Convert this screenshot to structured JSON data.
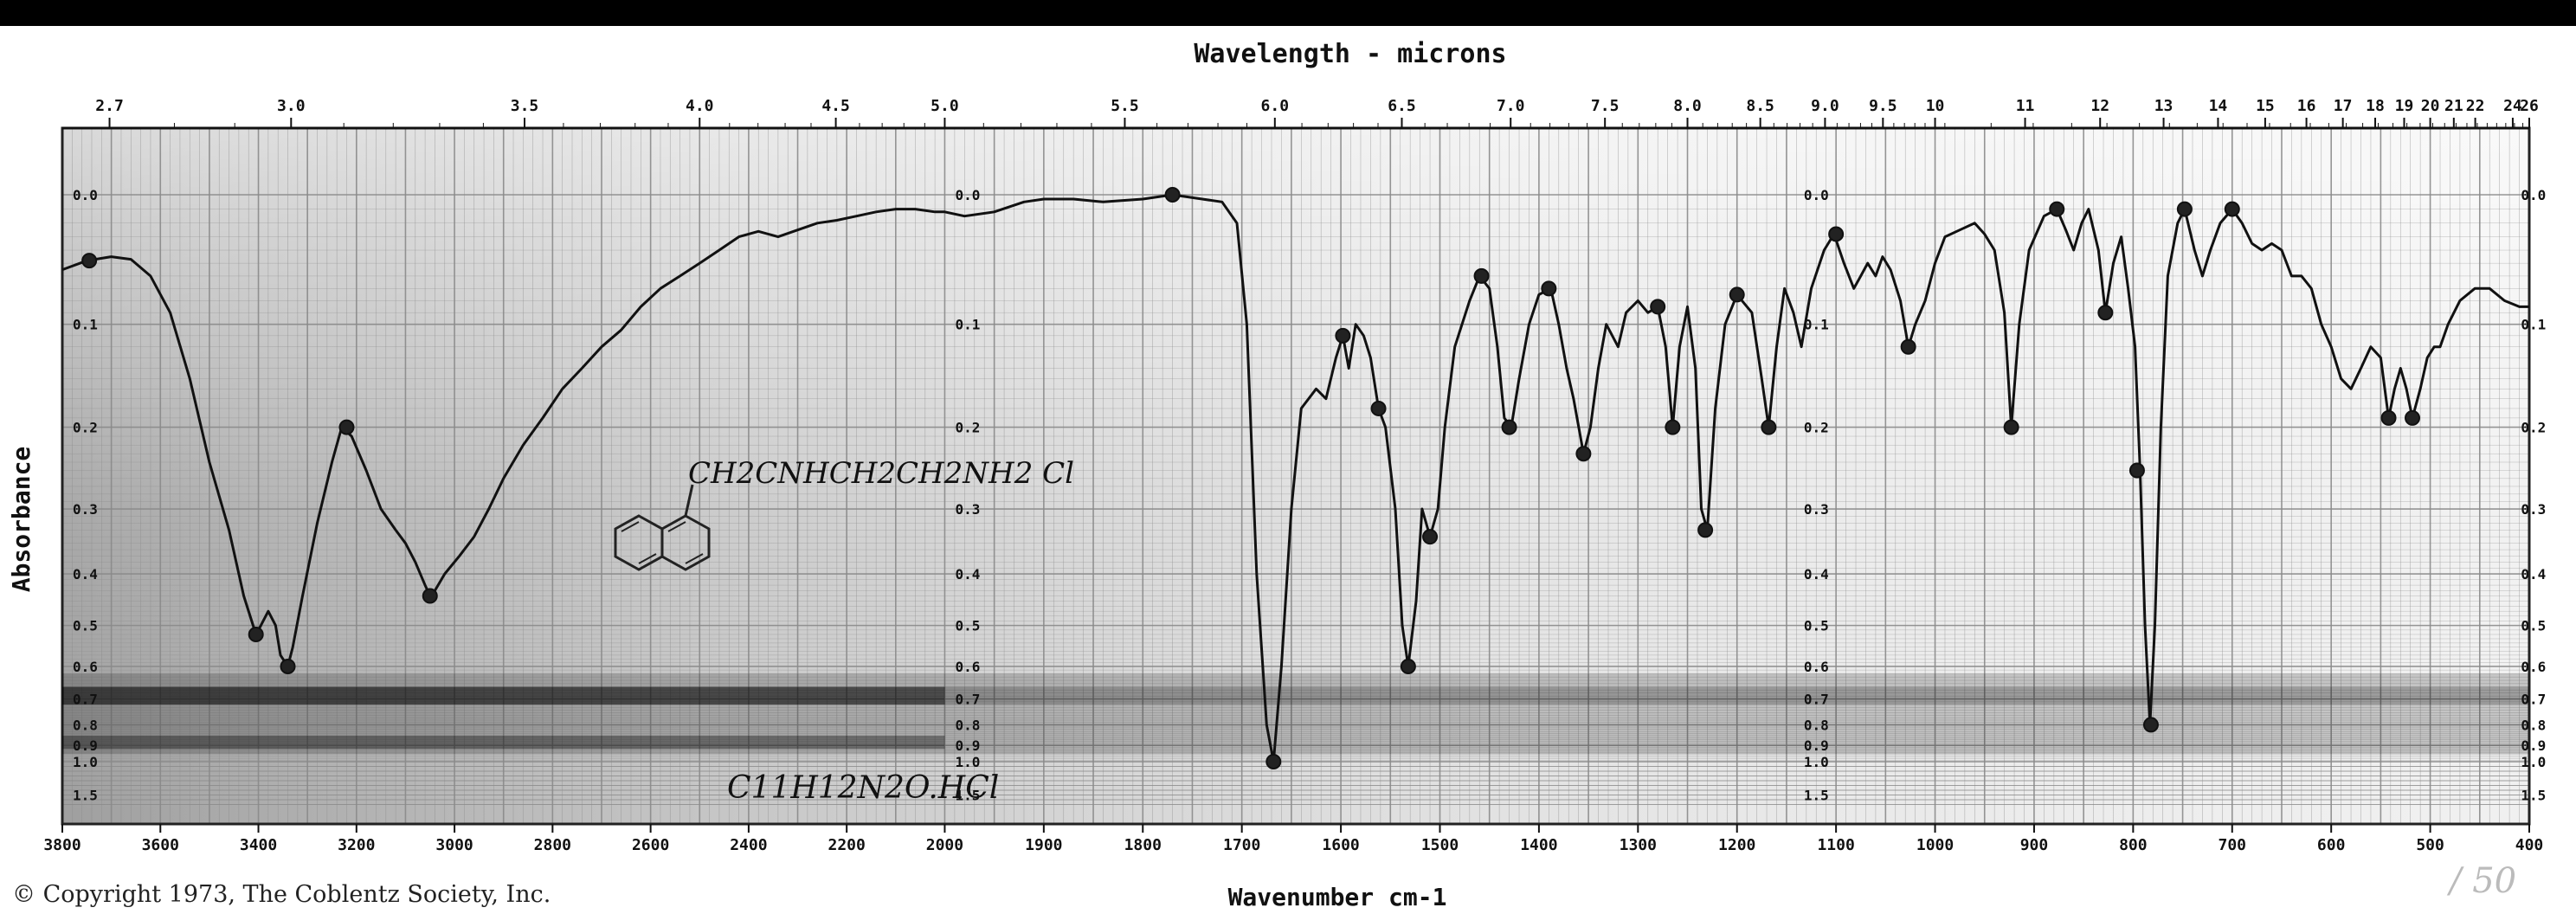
{
  "chart_data": {
    "type": "line",
    "title": "",
    "top_axis_label": "Wavelength - microns",
    "xlabel": "Wavenumber cm-1",
    "ylabel": "Absorbance",
    "copyright": "© Copyright 1973, The Coblentz Society, Inc.",
    "formula": "C11H12N2O.HCl",
    "structure_label": "CH2CNHCH2CH2NH2 Cl",
    "handwritten_note": "/ 50",
    "x_axis_segments": [
      {
        "from": 3800,
        "to": 2000,
        "left": 0.0,
        "right": 0.3577
      },
      {
        "from": 2000,
        "to": 400,
        "left": 0.3577,
        "right": 1.0
      }
    ],
    "bottom_ticks": [
      3800,
      3600,
      3400,
      3200,
      3000,
      2800,
      2600,
      2400,
      2200,
      2000,
      1900,
      1800,
      1700,
      1600,
      1500,
      1400,
      1300,
      1200,
      1100,
      1000,
      900,
      800,
      700,
      600,
      500,
      400
    ],
    "top_ticks": [
      {
        "label": "2.7",
        "um": 2.7
      },
      {
        "label": "3.0",
        "um": 3.0
      },
      {
        "label": "3.5",
        "um": 3.5
      },
      {
        "label": "4.0",
        "um": 4.0
      },
      {
        "label": "4.5",
        "um": 4.5
      },
      {
        "label": "5.0",
        "um": 5.0
      },
      {
        "label": "5.5",
        "um": 5.5
      },
      {
        "label": "6.0",
        "um": 6.0
      },
      {
        "label": "6.5",
        "um": 6.5
      },
      {
        "label": "7.0",
        "um": 7.0
      },
      {
        "label": "7.5",
        "um": 7.5
      },
      {
        "label": "8.0",
        "um": 8.0
      },
      {
        "label": "8.5",
        "um": 8.5
      },
      {
        "label": "9.0",
        "um": 9.0
      },
      {
        "label": "9.5",
        "um": 9.5
      },
      {
        "label": "10",
        "um": 10
      },
      {
        "label": "11",
        "um": 11
      },
      {
        "label": "12",
        "um": 12
      },
      {
        "label": "13",
        "um": 13
      },
      {
        "label": "14",
        "um": 14
      },
      {
        "label": "15",
        "um": 15
      },
      {
        "label": "16",
        "um": 16
      },
      {
        "label": "17",
        "um": 17
      },
      {
        "label": "18",
        "um": 18
      },
      {
        "label": "19",
        "um": 19
      },
      {
        "label": "20",
        "um": 20
      },
      {
        "label": "21",
        "um": 21
      },
      {
        "label": "22",
        "um": 22
      },
      {
        "label": "24",
        "um": 24
      },
      {
        "label": "26",
        "um": 26
      }
    ],
    "absorbance_ticks": [
      {
        "label": "0.0",
        "value": 0.0
      },
      {
        "label": "0.1",
        "value": 0.1
      },
      {
        "label": "0.2",
        "value": 0.2
      },
      {
        "label": "0.3",
        "value": 0.3
      },
      {
        "label": "0.4",
        "value": 0.4
      },
      {
        "label": "0.5",
        "value": 0.5
      },
      {
        "label": "0.6",
        "value": 0.6
      },
      {
        "label": "0.7",
        "value": 0.7
      },
      {
        "label": "0.8",
        "value": 0.8
      },
      {
        "label": "0.9",
        "value": 0.9
      },
      {
        "label": "1.0",
        "value": 1.0
      },
      {
        "label": "1.5",
        "value": 1.5
      }
    ],
    "absorbance_scale_columns": [
      0.0,
      0.3577,
      0.7017,
      0.9924
    ],
    "series": [
      {
        "points": [
          [
            3800,
            0.055
          ],
          [
            3750,
            0.048
          ],
          [
            3700,
            0.045
          ],
          [
            3660,
            0.047
          ],
          [
            3620,
            0.06
          ],
          [
            3580,
            0.09
          ],
          [
            3540,
            0.15
          ],
          [
            3500,
            0.24
          ],
          [
            3460,
            0.33
          ],
          [
            3430,
            0.44
          ],
          [
            3405,
            0.52
          ],
          [
            3395,
            0.5
          ],
          [
            3380,
            0.47
          ],
          [
            3365,
            0.5
          ],
          [
            3355,
            0.57
          ],
          [
            3340,
            0.6
          ],
          [
            3330,
            0.55
          ],
          [
            3310,
            0.44
          ],
          [
            3280,
            0.32
          ],
          [
            3250,
            0.24
          ],
          [
            3230,
            0.2
          ],
          [
            3210,
            0.21
          ],
          [
            3180,
            0.25
          ],
          [
            3150,
            0.3
          ],
          [
            3120,
            0.33
          ],
          [
            3100,
            0.35
          ],
          [
            3080,
            0.38
          ],
          [
            3060,
            0.42
          ],
          [
            3050,
            0.44
          ],
          [
            3040,
            0.43
          ],
          [
            3020,
            0.4
          ],
          [
            2990,
            0.37
          ],
          [
            2960,
            0.34
          ],
          [
            2930,
            0.3
          ],
          [
            2900,
            0.26
          ],
          [
            2860,
            0.22
          ],
          [
            2820,
            0.19
          ],
          [
            2780,
            0.16
          ],
          [
            2740,
            0.14
          ],
          [
            2700,
            0.12
          ],
          [
            2660,
            0.105
          ],
          [
            2620,
            0.085
          ],
          [
            2580,
            0.07
          ],
          [
            2540,
            0.06
          ],
          [
            2500,
            0.05
          ],
          [
            2460,
            0.04
          ],
          [
            2420,
            0.03
          ],
          [
            2380,
            0.026
          ],
          [
            2340,
            0.03
          ],
          [
            2300,
            0.025
          ],
          [
            2260,
            0.02
          ],
          [
            2220,
            0.018
          ],
          [
            2180,
            0.015
          ],
          [
            2140,
            0.012
          ],
          [
            2100,
            0.01
          ],
          [
            2060,
            0.01
          ],
          [
            2020,
            0.012
          ],
          [
            2000,
            0.012
          ],
          [
            1980,
            0.015
          ],
          [
            1950,
            0.012
          ],
          [
            1920,
            0.005
          ],
          [
            1900,
            0.003
          ],
          [
            1870,
            0.003
          ],
          [
            1840,
            0.005
          ],
          [
            1800,
            0.003
          ],
          [
            1770,
            0.0
          ],
          [
            1740,
            0.003
          ],
          [
            1720,
            0.005
          ],
          [
            1705,
            0.02
          ],
          [
            1695,
            0.1
          ],
          [
            1685,
            0.4
          ],
          [
            1675,
            0.8
          ],
          [
            1668,
            1.0
          ],
          [
            1660,
            0.6
          ],
          [
            1650,
            0.3
          ],
          [
            1640,
            0.18
          ],
          [
            1625,
            0.16
          ],
          [
            1615,
            0.17
          ],
          [
            1605,
            0.13
          ],
          [
            1598,
            0.11
          ],
          [
            1592,
            0.14
          ],
          [
            1585,
            0.1
          ],
          [
            1577,
            0.11
          ],
          [
            1570,
            0.13
          ],
          [
            1562,
            0.18
          ],
          [
            1555,
            0.2
          ],
          [
            1545,
            0.3
          ],
          [
            1538,
            0.5
          ],
          [
            1532,
            0.6
          ],
          [
            1524,
            0.45
          ],
          [
            1518,
            0.3
          ],
          [
            1510,
            0.34
          ],
          [
            1502,
            0.3
          ],
          [
            1495,
            0.2
          ],
          [
            1485,
            0.12
          ],
          [
            1470,
            0.08
          ],
          [
            1460,
            0.06
          ],
          [
            1450,
            0.07
          ],
          [
            1442,
            0.12
          ],
          [
            1435,
            0.19
          ],
          [
            1428,
            0.2
          ],
          [
            1420,
            0.15
          ],
          [
            1410,
            0.1
          ],
          [
            1400,
            0.075
          ],
          [
            1388,
            0.07
          ],
          [
            1380,
            0.1
          ],
          [
            1372,
            0.14
          ],
          [
            1365,
            0.17
          ],
          [
            1355,
            0.23
          ],
          [
            1348,
            0.2
          ],
          [
            1340,
            0.14
          ],
          [
            1332,
            0.1
          ],
          [
            1320,
            0.12
          ],
          [
            1312,
            0.09
          ],
          [
            1300,
            0.08
          ],
          [
            1290,
            0.09
          ],
          [
            1280,
            0.085
          ],
          [
            1272,
            0.12
          ],
          [
            1265,
            0.2
          ],
          [
            1258,
            0.12
          ],
          [
            1250,
            0.085
          ],
          [
            1242,
            0.14
          ],
          [
            1236,
            0.3
          ],
          [
            1230,
            0.33
          ],
          [
            1222,
            0.18
          ],
          [
            1212,
            0.1
          ],
          [
            1200,
            0.075
          ],
          [
            1185,
            0.09
          ],
          [
            1175,
            0.15
          ],
          [
            1168,
            0.2
          ],
          [
            1160,
            0.12
          ],
          [
            1152,
            0.07
          ],
          [
            1143,
            0.09
          ],
          [
            1135,
            0.12
          ],
          [
            1125,
            0.07
          ],
          [
            1112,
            0.04
          ],
          [
            1102,
            0.028
          ],
          [
            1092,
            0.05
          ],
          [
            1082,
            0.07
          ],
          [
            1075,
            0.06
          ],
          [
            1068,
            0.05
          ],
          [
            1060,
            0.06
          ],
          [
            1053,
            0.045
          ],
          [
            1045,
            0.055
          ],
          [
            1035,
            0.08
          ],
          [
            1027,
            0.12
          ],
          [
            1020,
            0.1
          ],
          [
            1010,
            0.08
          ],
          [
            1000,
            0.05
          ],
          [
            990,
            0.03
          ],
          [
            975,
            0.025
          ],
          [
            960,
            0.02
          ],
          [
            950,
            0.028
          ],
          [
            940,
            0.04
          ],
          [
            930,
            0.09
          ],
          [
            923,
            0.2
          ],
          [
            915,
            0.1
          ],
          [
            905,
            0.04
          ],
          [
            890,
            0.015
          ],
          [
            877,
            0.01
          ],
          [
            868,
            0.025
          ],
          [
            860,
            0.04
          ],
          [
            852,
            0.02
          ],
          [
            845,
            0.01
          ],
          [
            835,
            0.04
          ],
          [
            828,
            0.09
          ],
          [
            820,
            0.05
          ],
          [
            812,
            0.03
          ],
          [
            805,
            0.07
          ],
          [
            798,
            0.12
          ],
          [
            793,
            0.25
          ],
          [
            788,
            0.5
          ],
          [
            783,
            0.8
          ],
          [
            778,
            0.5
          ],
          [
            772,
            0.2
          ],
          [
            765,
            0.06
          ],
          [
            755,
            0.02
          ],
          [
            748,
            0.01
          ],
          [
            738,
            0.04
          ],
          [
            730,
            0.06
          ],
          [
            722,
            0.04
          ],
          [
            712,
            0.02
          ],
          [
            700,
            0.01
          ],
          [
            690,
            0.02
          ],
          [
            680,
            0.035
          ],
          [
            670,
            0.04
          ],
          [
            660,
            0.035
          ],
          [
            650,
            0.04
          ],
          [
            640,
            0.06
          ],
          [
            630,
            0.06
          ],
          [
            620,
            0.07
          ],
          [
            610,
            0.1
          ],
          [
            600,
            0.12
          ],
          [
            590,
            0.15
          ],
          [
            580,
            0.16
          ],
          [
            570,
            0.14
          ],
          [
            560,
            0.12
          ],
          [
            550,
            0.13
          ],
          [
            542,
            0.19
          ],
          [
            536,
            0.16
          ],
          [
            530,
            0.14
          ],
          [
            524,
            0.16
          ],
          [
            518,
            0.19
          ],
          [
            510,
            0.16
          ],
          [
            503,
            0.13
          ],
          [
            496,
            0.12
          ],
          [
            490,
            0.12
          ],
          [
            482,
            0.1
          ],
          [
            470,
            0.08
          ],
          [
            455,
            0.07
          ],
          [
            440,
            0.07
          ],
          [
            425,
            0.08
          ],
          [
            410,
            0.085
          ],
          [
            400,
            0.085
          ]
        ]
      }
    ],
    "markers": [
      [
        3745,
        0.048
      ],
      [
        3405,
        0.52
      ],
      [
        3340,
        0.6
      ],
      [
        3220,
        0.2
      ],
      [
        3050,
        0.44
      ],
      [
        1770,
        0.0
      ],
      [
        1668,
        1.0
      ],
      [
        1598,
        0.11
      ],
      [
        1562,
        0.18
      ],
      [
        1532,
        0.6
      ],
      [
        1510,
        0.34
      ],
      [
        1458,
        0.06
      ],
      [
        1430,
        0.2
      ],
      [
        1390,
        0.07
      ],
      [
        1355,
        0.23
      ],
      [
        1280,
        0.085
      ],
      [
        1265,
        0.2
      ],
      [
        1232,
        0.33
      ],
      [
        1200,
        0.075
      ],
      [
        1168,
        0.2
      ],
      [
        1100,
        0.028
      ],
      [
        1027,
        0.12
      ],
      [
        923,
        0.2
      ],
      [
        877,
        0.01
      ],
      [
        828,
        0.09
      ],
      [
        796,
        0.25
      ],
      [
        782,
        0.8
      ],
      [
        748,
        0.01
      ],
      [
        700,
        0.01
      ],
      [
        542,
        0.19
      ],
      [
        518,
        0.19
      ]
    ],
    "colors": {
      "grid": "#8a8a8a",
      "curve": "#111111",
      "ink": "#111111"
    }
  }
}
